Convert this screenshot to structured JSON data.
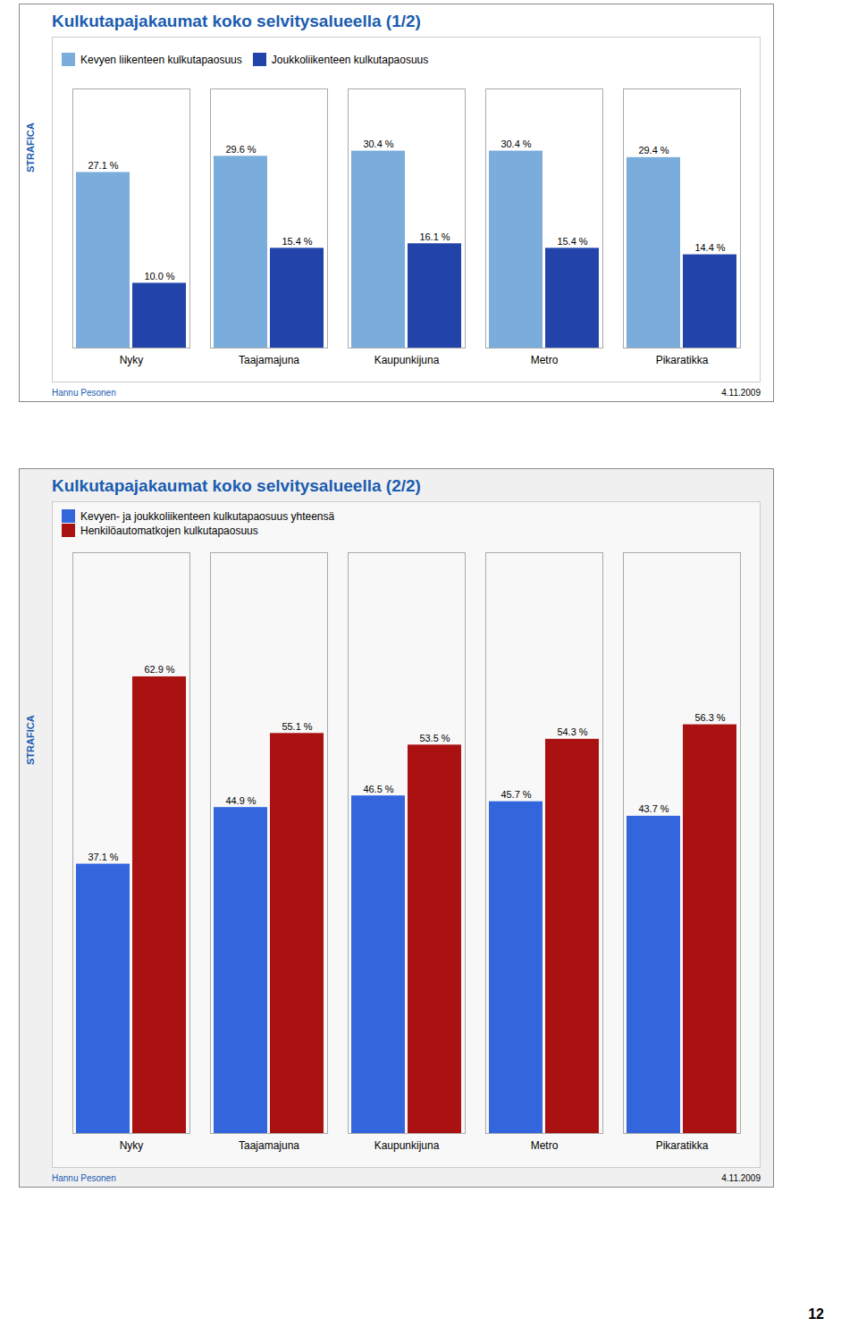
{
  "chart_data": [
    {
      "type": "bar",
      "title": "Kulkutapajakaumat koko selvitysalueella (1/2)",
      "categories": [
        "Nyky",
        "Taajamajuna",
        "Kaupunkijuna",
        "Metro",
        "Pikaratikka"
      ],
      "series": [
        {
          "name": "Kevyen liikenteen kulkutapaosuus",
          "color": "#7aacdc",
          "values": [
            27.1,
            29.6,
            30.4,
            30.4,
            29.4
          ],
          "value_labels": [
            "27.1 %",
            "29.6 %",
            "30.4 %",
            "30.4 %",
            "29.4 %"
          ]
        },
        {
          "name": "Joukkoliikenteen kulkutapaosuus",
          "color": "#2244aa",
          "values": [
            10.0,
            15.4,
            16.1,
            15.4,
            14.4
          ],
          "value_labels": [
            "10.0 %",
            "15.4 %",
            "16.1 %",
            "15.4 %",
            "14.4 %"
          ]
        }
      ],
      "ylim": [
        0,
        40
      ],
      "tick_labels": "x",
      "data_labels": true,
      "legend": "upper left",
      "annotations": [
        "STRAFICA",
        "Hannu Pesonen",
        "4.11.2009"
      ]
    },
    {
      "type": "bar",
      "title": "Kulkutapajakaumat koko selvitysalueella (2/2)",
      "categories": [
        "Nyky",
        "Taajamajuna",
        "Kaupunkijuna",
        "Metro",
        "Pikaratikka"
      ],
      "series": [
        {
          "name": "Kevyen- ja joukkoliikenteen kulkutapaosuus yhteensä",
          "color": "#3366dd",
          "values": [
            37.1,
            44.9,
            46.5,
            45.7,
            43.7
          ],
          "value_labels": [
            "37.1 %",
            "44.9 %",
            "46.5 %",
            "45.7 %",
            "43.7 %"
          ]
        },
        {
          "name": "Henkilöautomatkojen kulkutapaosuus",
          "color": "#aa1111",
          "values": [
            62.9,
            55.1,
            53.5,
            54.3,
            56.3
          ],
          "value_labels": [
            "62.9 %",
            "55.1 %",
            "53.5 %",
            "54.3 %",
            "56.3 %"
          ]
        }
      ],
      "ylim": [
        0,
        80
      ],
      "tick_labels": "x",
      "data_labels": true,
      "legend": "upper left",
      "annotations": [
        "STRAFICA",
        "Hannu Pesonen",
        "4.11.2009",
        "12"
      ]
    }
  ]
}
